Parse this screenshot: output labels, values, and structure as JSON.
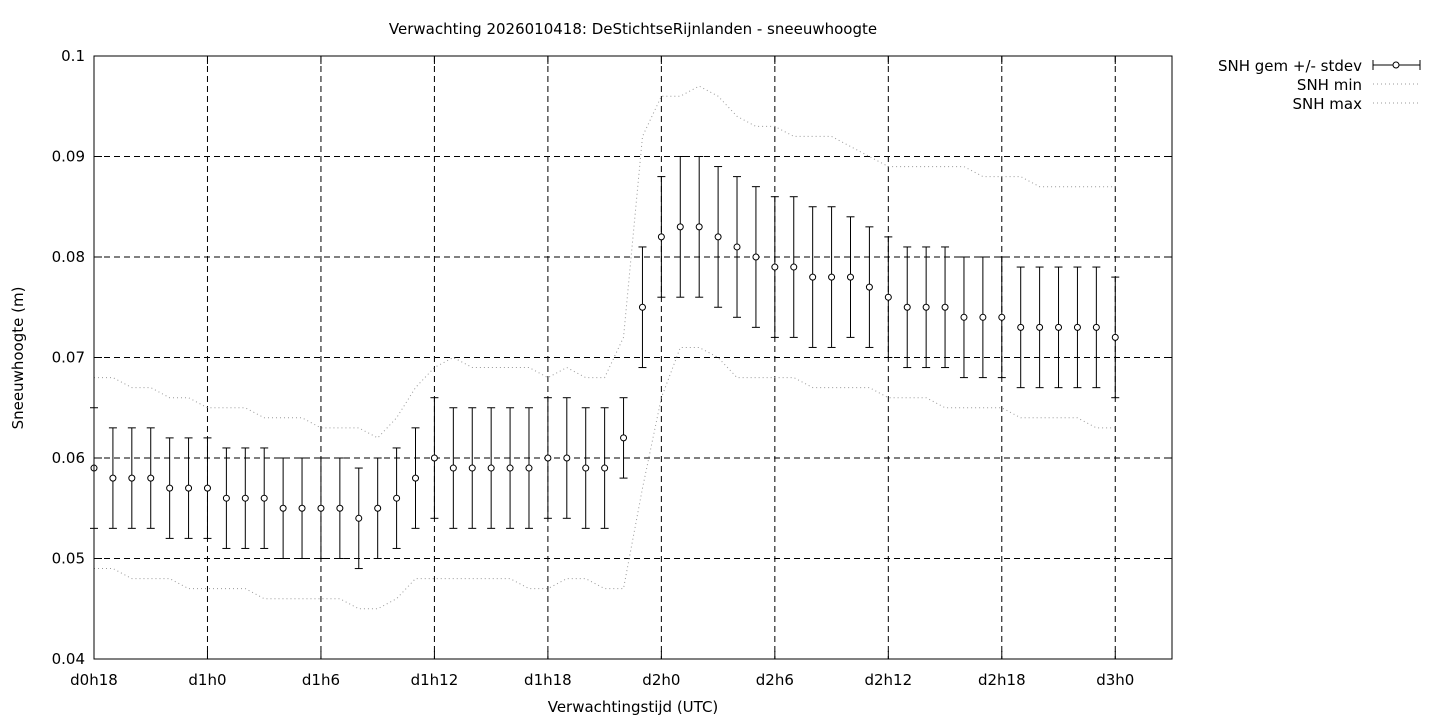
{
  "chart_data": {
    "type": "line",
    "title": "Verwachting 2026010418: DeStichtseRijnlanden - sneeuwhoogte",
    "xlabel": "Verwachtingstijd (UTC)",
    "ylabel": "Sneeuwhoogte (m)",
    "ylim": [
      0.04,
      0.1
    ],
    "xlim": [
      18,
      75
    ],
    "grid": true,
    "legend_position": "outside-top-right",
    "x_ticks": [
      {
        "x": 18,
        "label": "d0h18"
      },
      {
        "x": 24,
        "label": "d1h0"
      },
      {
        "x": 30,
        "label": "d1h6"
      },
      {
        "x": 36,
        "label": "d1h12"
      },
      {
        "x": 42,
        "label": "d1h18"
      },
      {
        "x": 48,
        "label": "d2h0"
      },
      {
        "x": 54,
        "label": "d2h6"
      },
      {
        "x": 60,
        "label": "d2h12"
      },
      {
        "x": 66,
        "label": "d2h18"
      },
      {
        "x": 72,
        "label": "d3h0"
      }
    ],
    "y_ticks": [
      {
        "y": 0.04,
        "label": "0.04"
      },
      {
        "y": 0.05,
        "label": "0.05"
      },
      {
        "y": 0.06,
        "label": "0.06"
      },
      {
        "y": 0.07,
        "label": "0.07"
      },
      {
        "y": 0.08,
        "label": "0.08"
      },
      {
        "y": 0.09,
        "label": "0.09"
      },
      {
        "y": 0.1,
        "label": "0.1"
      }
    ],
    "x": [
      18,
      19,
      20,
      21,
      22,
      23,
      24,
      25,
      26,
      27,
      28,
      29,
      30,
      31,
      32,
      33,
      34,
      35,
      36,
      37,
      38,
      39,
      40,
      41,
      42,
      43,
      44,
      45,
      46,
      47,
      48,
      49,
      50,
      51,
      52,
      53,
      54,
      55,
      56,
      57,
      58,
      59,
      60,
      61,
      62,
      63,
      64,
      65,
      66,
      67,
      68,
      69,
      70,
      71,
      72
    ],
    "series": [
      {
        "name": "SNH gem +/- stdev",
        "style": "errorbars",
        "mean": [
          0.059,
          0.058,
          0.058,
          0.058,
          0.057,
          0.057,
          0.057,
          0.056,
          0.056,
          0.056,
          0.055,
          0.055,
          0.055,
          0.055,
          0.054,
          0.055,
          0.056,
          0.058,
          0.06,
          0.059,
          0.059,
          0.059,
          0.059,
          0.059,
          0.06,
          0.06,
          0.059,
          0.059,
          0.062,
          0.075,
          0.082,
          0.083,
          0.083,
          0.082,
          0.081,
          0.08,
          0.079,
          0.079,
          0.078,
          0.078,
          0.078,
          0.077,
          0.076,
          0.075,
          0.075,
          0.075,
          0.074,
          0.074,
          0.074,
          0.073,
          0.073,
          0.073,
          0.073,
          0.073,
          0.072
        ],
        "lower": [
          0.053,
          0.053,
          0.053,
          0.053,
          0.052,
          0.052,
          0.052,
          0.051,
          0.051,
          0.051,
          0.05,
          0.05,
          0.05,
          0.05,
          0.049,
          0.05,
          0.051,
          0.053,
          0.054,
          0.053,
          0.053,
          0.053,
          0.053,
          0.053,
          0.054,
          0.054,
          0.053,
          0.053,
          0.058,
          0.069,
          0.076,
          0.076,
          0.076,
          0.075,
          0.074,
          0.073,
          0.072,
          0.072,
          0.071,
          0.071,
          0.072,
          0.071,
          0.07,
          0.069,
          0.069,
          0.069,
          0.068,
          0.068,
          0.068,
          0.067,
          0.067,
          0.067,
          0.067,
          0.067,
          0.066
        ],
        "upper": [
          0.065,
          0.063,
          0.063,
          0.063,
          0.062,
          0.062,
          0.062,
          0.061,
          0.061,
          0.061,
          0.06,
          0.06,
          0.06,
          0.06,
          0.059,
          0.06,
          0.061,
          0.063,
          0.066,
          0.065,
          0.065,
          0.065,
          0.065,
          0.065,
          0.066,
          0.066,
          0.065,
          0.065,
          0.066,
          0.081,
          0.088,
          0.09,
          0.09,
          0.089,
          0.088,
          0.087,
          0.086,
          0.086,
          0.085,
          0.085,
          0.084,
          0.083,
          0.082,
          0.081,
          0.081,
          0.081,
          0.08,
          0.08,
          0.08,
          0.079,
          0.079,
          0.079,
          0.079,
          0.079,
          0.078
        ]
      },
      {
        "name": "SNH min",
        "style": "dotted",
        "values": [
          0.049,
          0.049,
          0.048,
          0.048,
          0.048,
          0.047,
          0.047,
          0.047,
          0.047,
          0.046,
          0.046,
          0.046,
          0.046,
          0.046,
          0.045,
          0.045,
          0.046,
          0.048,
          0.048,
          0.048,
          0.048,
          0.048,
          0.048,
          0.047,
          0.047,
          0.048,
          0.048,
          0.047,
          0.047,
          0.057,
          0.066,
          0.071,
          0.071,
          0.07,
          0.068,
          0.068,
          0.068,
          0.068,
          0.067,
          0.067,
          0.067,
          0.067,
          0.066,
          0.066,
          0.066,
          0.065,
          0.065,
          0.065,
          0.065,
          0.064,
          0.064,
          0.064,
          0.064,
          0.063,
          0.063
        ]
      },
      {
        "name": "SNH max",
        "style": "dotted",
        "values": [
          0.068,
          0.068,
          0.067,
          0.067,
          0.066,
          0.066,
          0.065,
          0.065,
          0.065,
          0.064,
          0.064,
          0.064,
          0.063,
          0.063,
          0.063,
          0.062,
          0.064,
          0.067,
          0.069,
          0.07,
          0.069,
          0.069,
          0.069,
          0.069,
          0.068,
          0.069,
          0.068,
          0.068,
          0.072,
          0.092,
          0.096,
          0.096,
          0.097,
          0.096,
          0.094,
          0.093,
          0.093,
          0.092,
          0.092,
          0.092,
          0.091,
          0.09,
          0.089,
          0.089,
          0.089,
          0.089,
          0.089,
          0.088,
          0.088,
          0.088,
          0.087,
          0.087,
          0.087,
          0.087,
          0.087
        ]
      }
    ]
  }
}
